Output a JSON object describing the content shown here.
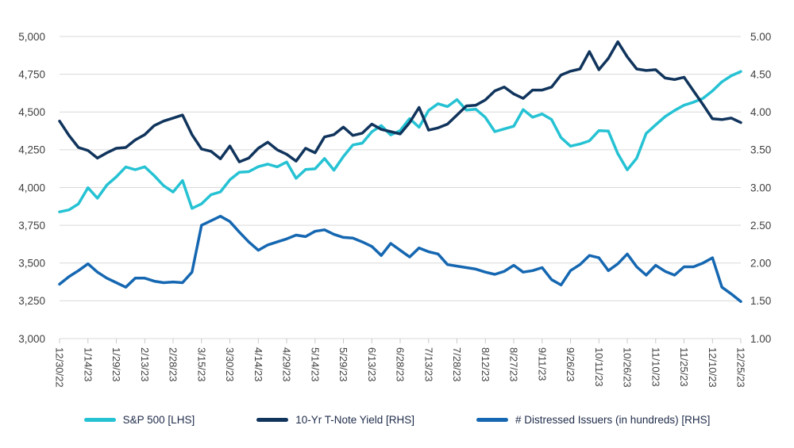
{
  "chart_data": {
    "type": "line",
    "title": "",
    "grid": "horizontal",
    "legend_position": "bottom",
    "grid_color": "#d9d9d9",
    "tick_color": "#c8c8c8",
    "axis_text_color": "#404040",
    "x_label_every_n_points": 3,
    "x_tick_labels": [
      "12/30/22",
      "1/14/23",
      "1/29/23",
      "2/13/23",
      "2/28/23",
      "3/15/23",
      "3/30/23",
      "4/14/23",
      "4/29/23",
      "5/14/23",
      "5/29/23",
      "6/13/23",
      "6/28/23",
      "7/13/23",
      "7/28/23",
      "8/12/23",
      "8/27/23",
      "9/11/23",
      "9/26/23",
      "10/11/23",
      "10/26/23",
      "11/10/23",
      "11/25/23",
      "12/10/23",
      "12/25/23"
    ],
    "left_axis": {
      "min": 3000,
      "max": 5000,
      "step": 250,
      "tick_values": [
        5000,
        4750,
        4500,
        4250,
        4000,
        3750,
        3500,
        3250,
        3000
      ],
      "tick_labels": [
        "5,000",
        "4,750",
        "4,500",
        "4,250",
        "4,000",
        "3,750",
        "3,500",
        "3,250",
        "3,000"
      ]
    },
    "right_axis": {
      "min": 1.0,
      "max": 5.0,
      "step": 0.5,
      "tick_values": [
        5.0,
        4.5,
        4.0,
        3.5,
        3.0,
        2.5,
        2.0,
        1.5,
        1.0
      ],
      "tick_labels": [
        "5.00",
        "4.50",
        "4.00",
        "3.50",
        "3.00",
        "2.50",
        "2.00",
        "1.50",
        "1.00"
      ]
    },
    "series": [
      {
        "name": "S&P 500 [LHS]",
        "axis": "left",
        "color": "#25c2d3",
        "values": [
          3839,
          3852,
          3892,
          3999,
          3929,
          4017,
          4071,
          4136,
          4118,
          4137,
          4079,
          4012,
          3970,
          4046,
          3862,
          3892,
          3952,
          3971,
          4051,
          4101,
          4105,
          4138,
          4155,
          4137,
          4169,
          4061,
          4119,
          4124,
          4192,
          4115,
          4205,
          4282,
          4294,
          4369,
          4410,
          4348,
          4377,
          4456,
          4399,
          4510,
          4555,
          4536,
          4582,
          4513,
          4518,
          4464,
          4370,
          4388,
          4406,
          4516,
          4465,
          4487,
          4450,
          4330,
          4274,
          4288,
          4309,
          4377,
          4374,
          4224,
          4117,
          4194,
          4358,
          4415,
          4470,
          4510,
          4545,
          4565,
          4590,
          4640,
          4700,
          4740,
          4768
        ]
      },
      {
        "name": "10-Yr T-Note Yield [RHS]",
        "axis": "right",
        "color": "#10345c",
        "values": [
          3.88,
          3.69,
          3.53,
          3.49,
          3.39,
          3.46,
          3.52,
          3.53,
          3.63,
          3.7,
          3.82,
          3.88,
          3.92,
          3.96,
          3.7,
          3.51,
          3.48,
          3.38,
          3.55,
          3.34,
          3.39,
          3.52,
          3.6,
          3.5,
          3.44,
          3.35,
          3.52,
          3.46,
          3.67,
          3.7,
          3.8,
          3.69,
          3.72,
          3.84,
          3.77,
          3.74,
          3.71,
          3.86,
          4.06,
          3.76,
          3.79,
          3.84,
          3.96,
          4.08,
          4.09,
          4.16,
          4.28,
          4.33,
          4.24,
          4.18,
          4.29,
          4.29,
          4.33,
          4.49,
          4.54,
          4.57,
          4.8,
          4.56,
          4.71,
          4.93,
          4.73,
          4.57,
          4.55,
          4.56,
          4.45,
          4.43,
          4.46,
          4.28,
          4.1,
          3.91,
          3.9,
          3.92,
          3.86
        ]
      },
      {
        "name": "# Distressed Issuers (in hundreds) [RHS]",
        "axis": "right",
        "color": "#1567b1",
        "values": [
          1.72,
          1.82,
          1.9,
          1.99,
          1.88,
          1.8,
          1.74,
          1.68,
          1.8,
          1.8,
          1.76,
          1.74,
          1.75,
          1.74,
          1.88,
          2.5,
          2.56,
          2.62,
          2.55,
          2.41,
          2.28,
          2.17,
          2.24,
          2.28,
          2.32,
          2.37,
          2.35,
          2.42,
          2.44,
          2.38,
          2.34,
          2.33,
          2.28,
          2.22,
          2.1,
          2.26,
          2.17,
          2.08,
          2.2,
          2.15,
          2.12,
          1.98,
          1.96,
          1.94,
          1.92,
          1.88,
          1.85,
          1.89,
          1.97,
          1.88,
          1.9,
          1.94,
          1.78,
          1.71,
          1.9,
          1.98,
          2.1,
          2.07,
          1.9,
          1.99,
          2.12,
          1.95,
          1.84,
          1.97,
          1.89,
          1.84,
          1.95,
          1.95,
          2.0,
          2.07,
          1.68,
          1.59,
          1.49
        ]
      }
    ]
  }
}
